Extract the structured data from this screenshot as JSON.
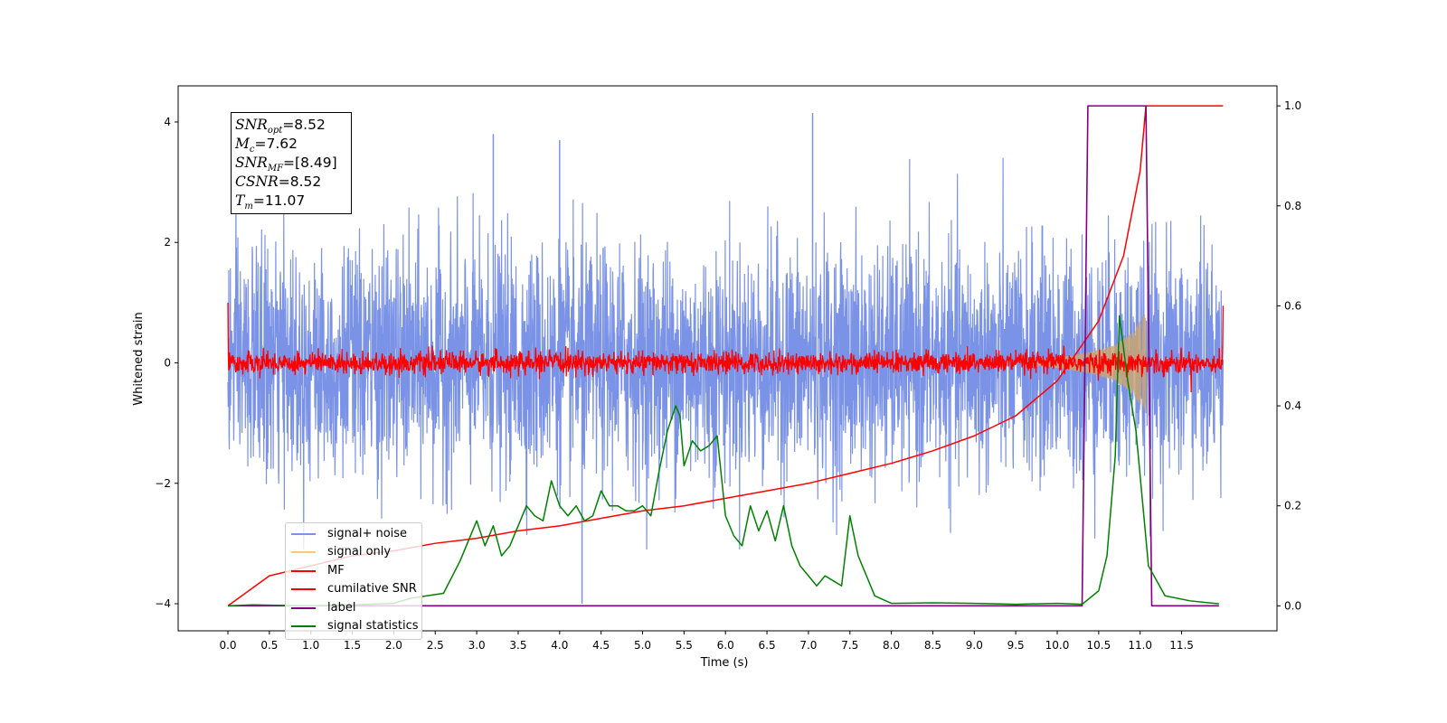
{
  "chart_data": {
    "type": "line",
    "xlabel": "Time (s)",
    "ylabel_left": "Whitened strain",
    "ylabel_right": "",
    "xlim": [
      -0.6,
      12.65
    ],
    "ylim_left": [
      -4.45,
      4.6
    ],
    "ylim_right": [
      -0.05,
      1.04
    ],
    "x_ticks": [
      "0.0",
      "0.5",
      "1.0",
      "1.5",
      "2.0",
      "2.5",
      "3.0",
      "3.5",
      "4.0",
      "4.5",
      "5.0",
      "5.5",
      "6.0",
      "6.5",
      "7.0",
      "7.5",
      "8.0",
      "8.5",
      "9.0",
      "9.5",
      "10.0",
      "10.5",
      "11.0",
      "11.5"
    ],
    "y_ticks_left": [
      "4",
      "2",
      "0",
      "−2",
      "−4"
    ],
    "y_ticks_right": [
      "1.0",
      "0.8",
      "0.6",
      "0.4",
      "0.2",
      "0.0"
    ],
    "grid": false,
    "legend_position": "lower-left",
    "colors": {
      "signal_noise": "#7b93e6",
      "signal_only": "#c9a672",
      "mf": "#ff0000",
      "cumulative_snr": "#ff0000",
      "label": "#800080",
      "signal_statistics": "#008000"
    },
    "series": [
      {
        "name": "signal+ noise",
        "axis": "left",
        "description_range": [
          -3.1,
          4.2
        ],
        "x_range": [
          0.0,
          12.0
        ],
        "notable_spikes": [
          {
            "x": 3.2,
            "y": 3.8
          },
          {
            "x": 4.0,
            "y": 3.7
          },
          {
            "x": 7.05,
            "y": 4.15
          },
          {
            "x": 4.27,
            "y": -4.0
          }
        ]
      },
      {
        "name": "signal only",
        "axis": "left",
        "x": [
          9.6,
          10.0,
          10.4,
          10.7,
          10.9,
          11.0,
          11.07
        ],
        "envelope": [
          0.02,
          0.08,
          0.18,
          0.3,
          0.5,
          0.7,
          0.85
        ]
      },
      {
        "name": "MF",
        "axis": "left",
        "x_range": [
          0.0,
          12.0
        ],
        "amplitude": 0.18,
        "edge_values": {
          "start": 1.0,
          "end": 0.95
        }
      },
      {
        "name": "cumilative SNR",
        "axis": "right",
        "x": [
          0.0,
          0.5,
          1.0,
          1.5,
          2.0,
          2.5,
          3.0,
          3.5,
          4.0,
          4.5,
          5.0,
          5.5,
          6.0,
          6.5,
          7.0,
          7.5,
          8.0,
          8.5,
          9.0,
          9.5,
          10.0,
          10.5,
          10.8,
          11.0,
          11.07,
          12.0
        ],
        "values": [
          0.0,
          0.06,
          0.08,
          0.1,
          0.11,
          0.125,
          0.135,
          0.15,
          0.16,
          0.175,
          0.19,
          0.2,
          0.215,
          0.23,
          0.245,
          0.265,
          0.285,
          0.31,
          0.34,
          0.38,
          0.45,
          0.57,
          0.7,
          0.87,
          1.0,
          1.0
        ]
      },
      {
        "name": "label",
        "axis": "right",
        "x": [
          0.0,
          10.3,
          10.37,
          11.07,
          11.14,
          11.95
        ],
        "values": [
          0.0,
          0.0,
          1.0,
          1.0,
          0.0,
          0.0
        ]
      },
      {
        "name": "signal statistics",
        "axis": "right",
        "x": [
          0.0,
          0.3,
          0.6,
          1.0,
          1.5,
          2.0,
          2.2,
          2.4,
          2.6,
          2.8,
          2.9,
          3.0,
          3.1,
          3.2,
          3.3,
          3.4,
          3.5,
          3.6,
          3.7,
          3.8,
          3.9,
          4.0,
          4.1,
          4.2,
          4.3,
          4.4,
          4.5,
          4.6,
          4.7,
          4.8,
          4.9,
          5.0,
          5.1,
          5.2,
          5.3,
          5.4,
          5.45,
          5.5,
          5.6,
          5.7,
          5.8,
          5.9,
          6.0,
          6.1,
          6.2,
          6.3,
          6.4,
          6.5,
          6.6,
          6.7,
          6.8,
          6.9,
          7.0,
          7.1,
          7.2,
          7.3,
          7.4,
          7.5,
          7.6,
          7.7,
          7.8,
          8.0,
          8.5,
          9.0,
          9.5,
          10.0,
          10.3,
          10.5,
          10.6,
          10.7,
          10.75,
          10.85,
          10.95,
          11.1,
          11.3,
          11.6,
          11.95
        ],
        "values": [
          0.0,
          0.002,
          0.001,
          0.0,
          0.002,
          0.005,
          0.015,
          0.02,
          0.025,
          0.09,
          0.13,
          0.17,
          0.12,
          0.16,
          0.1,
          0.12,
          0.16,
          0.2,
          0.18,
          0.17,
          0.25,
          0.2,
          0.18,
          0.2,
          0.17,
          0.18,
          0.23,
          0.2,
          0.2,
          0.19,
          0.19,
          0.2,
          0.18,
          0.27,
          0.35,
          0.4,
          0.38,
          0.28,
          0.33,
          0.31,
          0.32,
          0.34,
          0.18,
          0.14,
          0.12,
          0.2,
          0.15,
          0.19,
          0.13,
          0.2,
          0.12,
          0.08,
          0.06,
          0.04,
          0.06,
          0.05,
          0.04,
          0.18,
          0.1,
          0.06,
          0.02,
          0.005,
          0.006,
          0.005,
          0.003,
          0.005,
          0.003,
          0.03,
          0.1,
          0.3,
          0.58,
          0.45,
          0.35,
          0.08,
          0.02,
          0.01,
          0.004
        ]
      }
    ],
    "annotation": {
      "snr_opt": "=8.52",
      "mc": "=7.62",
      "snr_mf": "=[8.49]",
      "csnr": "=8.52",
      "tm": "=11.07"
    }
  }
}
